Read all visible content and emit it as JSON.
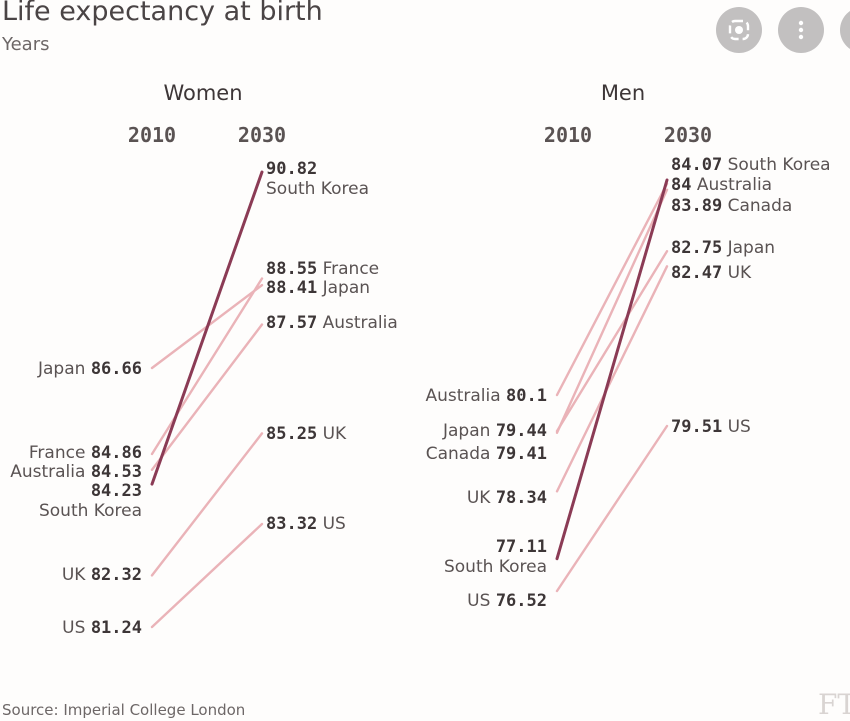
{
  "title": "Life expectancy at birth",
  "subtitle": "Years",
  "source": "Source: Imperial College London",
  "logo": "FT",
  "toolbar": {
    "icons": [
      "lens-icon",
      "more-options-icon",
      "partial-button"
    ]
  },
  "colors": {
    "highlight": "#8b3b55",
    "line": "#eab3b8",
    "label": "#5a5353",
    "value": "#3d3637"
  },
  "chart_data": [
    {
      "type": "line",
      "title": "Women",
      "x": [
        "2010",
        "2030"
      ],
      "series": [
        {
          "name": "South Korea",
          "values": [
            84.23,
            90.82
          ],
          "highlight": true
        },
        {
          "name": "France",
          "values": [
            84.86,
            88.55
          ]
        },
        {
          "name": "Japan",
          "values": [
            86.66,
            88.41
          ]
        },
        {
          "name": "Australia",
          "values": [
            84.53,
            87.57
          ]
        },
        {
          "name": "UK",
          "values": [
            82.32,
            85.25
          ]
        },
        {
          "name": "US",
          "values": [
            81.24,
            83.32
          ]
        }
      ]
    },
    {
      "type": "line",
      "title": "Men",
      "x": [
        "2010",
        "2030"
      ],
      "series": [
        {
          "name": "South Korea",
          "values": [
            77.11,
            84.07
          ],
          "highlight": true
        },
        {
          "name": "Australia",
          "values": [
            80.1,
            84
          ]
        },
        {
          "name": "Canada",
          "values": [
            79.41,
            83.89
          ]
        },
        {
          "name": "Japan",
          "values": [
            79.44,
            82.75
          ]
        },
        {
          "name": "UK",
          "values": [
            78.34,
            82.47
          ]
        },
        {
          "name": "US",
          "values": [
            76.52,
            79.51
          ]
        }
      ]
    }
  ]
}
